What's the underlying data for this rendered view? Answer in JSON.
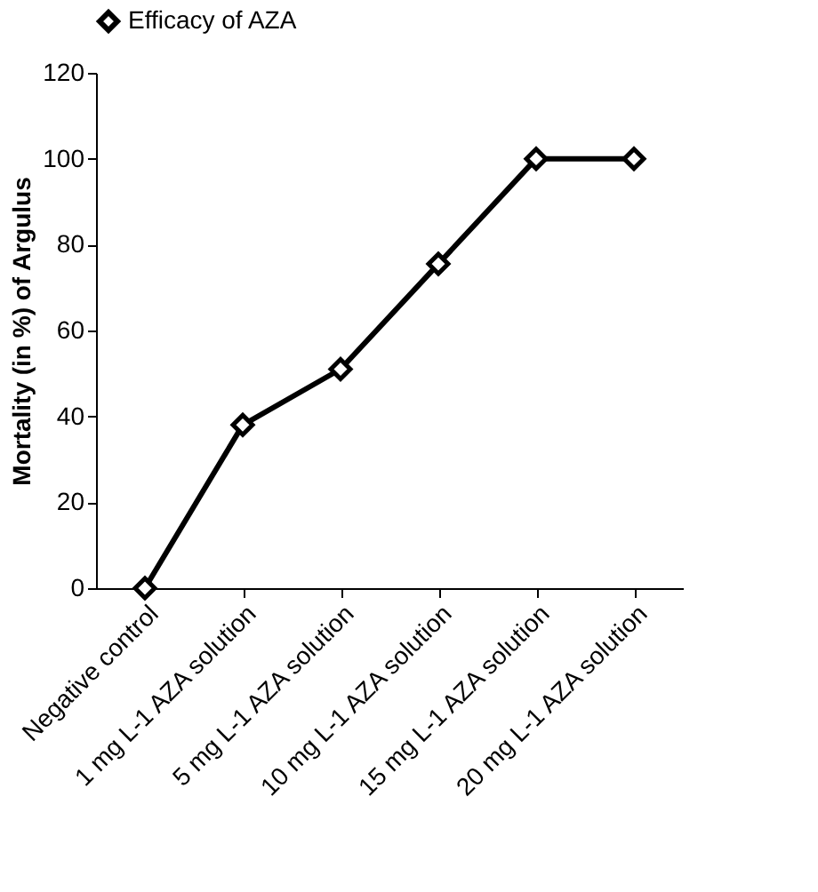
{
  "chart_data": {
    "type": "line",
    "ylabel": "Mortality (in %) of Argulus",
    "categories": [
      "Negative control",
      "1 mg L-1 AZA solution",
      "5 mg L-1 AZA solution",
      "10 mg L-1 AZA solution",
      "15 mg L-1 AZA solution",
      "20 mg L-1 AZA solution"
    ],
    "series": [
      {
        "name": "Efficacy of AZA",
        "color": "#000000",
        "values": [
          0,
          38,
          51,
          75.5,
          100,
          100
        ]
      }
    ],
    "ylim": [
      0,
      120
    ],
    "yticks": [
      0,
      20,
      40,
      60,
      80,
      100,
      120
    ],
    "grid": false,
    "legend": "top",
    "marker": "diamond",
    "line_style": "solid"
  }
}
